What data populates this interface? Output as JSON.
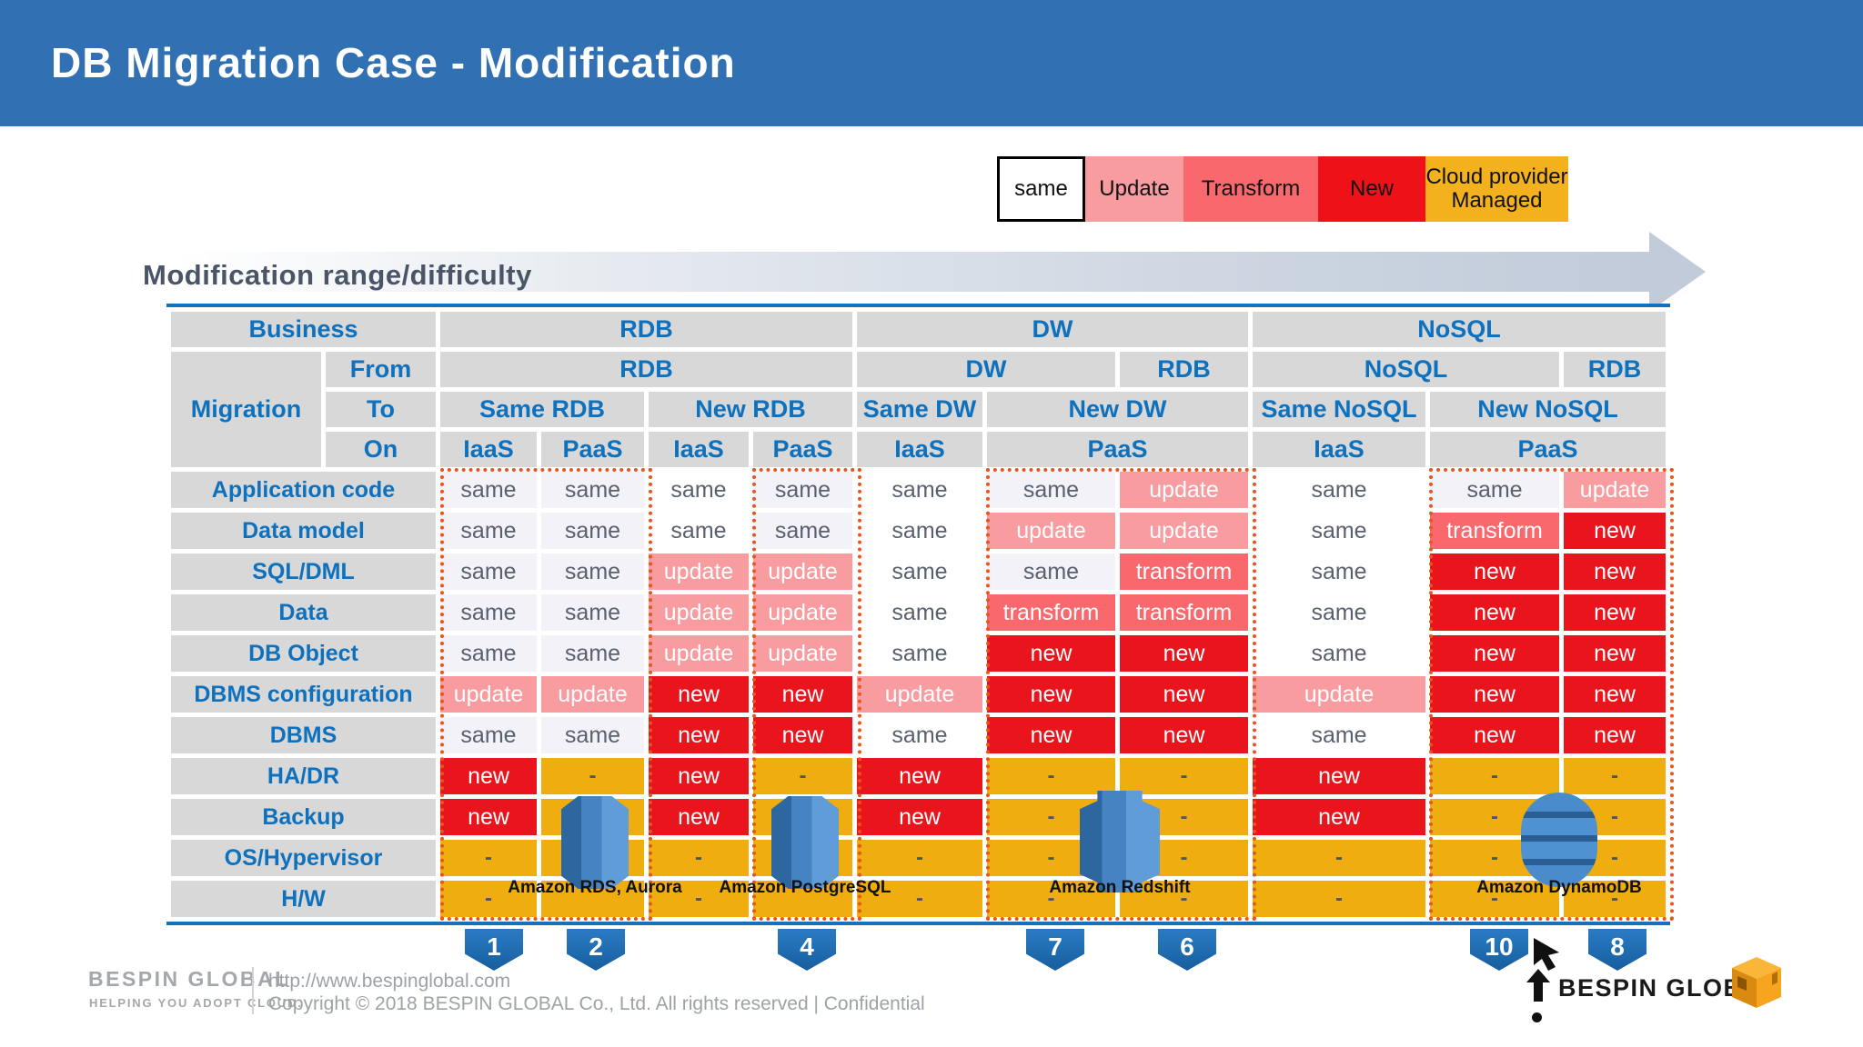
{
  "title": "DB Migration Case - Modification",
  "legend": {
    "items": [
      {
        "label": "same",
        "bg": "#FFFFFF",
        "border": "#000000"
      },
      {
        "label": "Update",
        "bg": "#F89CA0"
      },
      {
        "label": "Transform",
        "bg": "#F8686D"
      },
      {
        "label": "New",
        "bg": "#EE1118"
      },
      {
        "label": "Cloud provider Managed",
        "bg": "#F2B11D"
      }
    ]
  },
  "arrow_label": "Modification range/difficulty",
  "table": {
    "business_label": "Business",
    "business_cells": [
      "RDB",
      "DW",
      "NoSQL"
    ],
    "migration_label": "Migration",
    "from_label": "From",
    "to_label": "To",
    "on_label": "On",
    "from_cells": [
      "RDB",
      "DW",
      "RDB",
      "NoSQL",
      "RDB"
    ],
    "to_cells": [
      "Same RDB",
      "New RDB",
      "Same DW",
      "New DW",
      "Same NoSQL",
      "New NoSQL"
    ],
    "on_cells": [
      "IaaS",
      "PaaS",
      "IaaS",
      "PaaS",
      "IaaS",
      "PaaS",
      "IaaS",
      "PaaS"
    ],
    "rows": [
      {
        "label": "Application code",
        "cells": [
          "same",
          "same",
          "same",
          "same",
          "same",
          "same",
          "update",
          "same",
          "same",
          "update"
        ]
      },
      {
        "label": "Data model",
        "cells": [
          "same",
          "same",
          "same",
          "same",
          "same",
          "update",
          "update",
          "same",
          "transform",
          "new"
        ]
      },
      {
        "label": "SQL/DML",
        "cells": [
          "same",
          "same",
          "update",
          "update",
          "same",
          "same",
          "transform",
          "same",
          "new",
          "new"
        ]
      },
      {
        "label": "Data",
        "cells": [
          "same",
          "same",
          "update",
          "update",
          "same",
          "transform",
          "transform",
          "same",
          "new",
          "new"
        ]
      },
      {
        "label": "DB Object",
        "cells": [
          "same",
          "same",
          "update",
          "update",
          "same",
          "new",
          "new",
          "same",
          "new",
          "new"
        ]
      },
      {
        "label": "DBMS configuration",
        "cells": [
          "update",
          "update",
          "new",
          "new",
          "update",
          "new",
          "new",
          "update",
          "new",
          "new"
        ]
      },
      {
        "label": "DBMS",
        "cells": [
          "same",
          "same",
          "new",
          "new",
          "same",
          "new",
          "new",
          "same",
          "new",
          "new"
        ]
      },
      {
        "label": "HA/DR",
        "cells": [
          "new",
          "-",
          "new",
          "-",
          "new",
          "-",
          "-",
          "new",
          "-",
          "-"
        ]
      },
      {
        "label": "Backup",
        "cells": [
          "new",
          "",
          "new",
          "",
          "new",
          "-",
          "-",
          "new",
          "-",
          "-"
        ]
      },
      {
        "label": "OS/Hypervisor",
        "cells": [
          "-",
          "",
          "-",
          "",
          "-",
          "-",
          "-",
          "-",
          "-",
          "-"
        ]
      },
      {
        "label": "H/W",
        "cells": [
          "-",
          "",
          "-",
          "",
          "-",
          "-",
          "-",
          "-",
          "-",
          "-"
        ]
      }
    ],
    "boxed_columns": [
      1,
      2,
      4,
      6,
      7,
      9,
      10
    ]
  },
  "products": [
    {
      "name": "Amazon RDS, Aurora",
      "icon": "rds"
    },
    {
      "name": "Amazon PostgreSQL",
      "icon": "rds"
    },
    {
      "name": "Amazon Redshift",
      "icon": "redshift"
    },
    {
      "name": "Amazon DynamoDB",
      "icon": "dynamodb"
    }
  ],
  "badges": [
    "1",
    "2",
    "4",
    "7",
    "6",
    "10",
    "8"
  ],
  "footer": {
    "logo": "BESPIN GLOBAL",
    "tagline": "HELPING YOU ADOPT CLOUD.",
    "url": "http://www.bespinglobal.com",
    "copyright": "Copyright © 2018 BESPIN GLOBAL Co., Ltd. All rights reserved   |   Confidential",
    "brand_right": "BESPIN GLOBAL"
  },
  "colors": {
    "accent_blue": "#1470C0",
    "header_text": "#0E71BE",
    "update": "#F89CA0",
    "transform": "#F8686D",
    "new": "#E9141C",
    "managed": "#EFAD10",
    "box_border": "#E8551C"
  }
}
